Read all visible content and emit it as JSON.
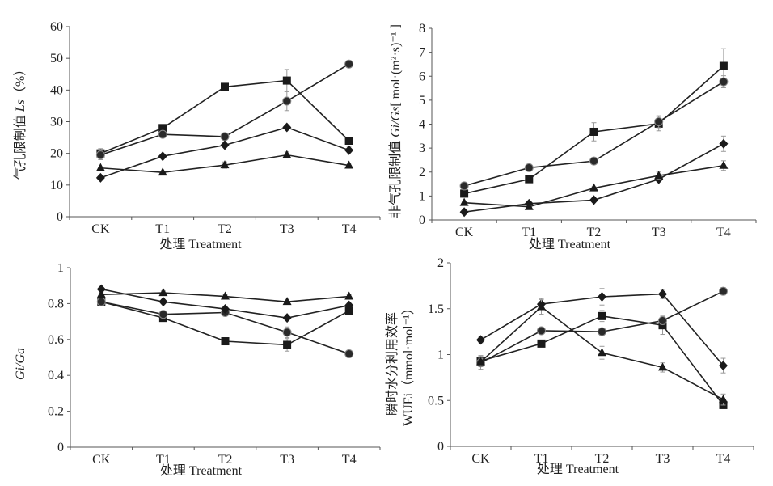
{
  "chart_data": [
    {
      "type": "line",
      "ylabel_parts": [
        {
          "text": "气孔限制值 ",
          "italic": false
        },
        {
          "text": "Ls",
          "italic": true
        },
        {
          "text": "（%）",
          "italic": false
        }
      ],
      "xlabel": "处理 Treatment",
      "categories": [
        "CK",
        "T1",
        "T2",
        "T3",
        "T4"
      ],
      "ylim": [
        0,
        60
      ],
      "yticks": [
        0,
        10,
        20,
        30,
        40,
        50,
        60
      ],
      "ytick_labels": [
        "0",
        "10",
        "20",
        "30",
        "40",
        "50",
        "60"
      ],
      "grid": false,
      "series": [
        {
          "marker": "square",
          "values": [
            20,
            28,
            41,
            43,
            24
          ],
          "errors": [
            1.5,
            0.5,
            1,
            3.5,
            0.5
          ]
        },
        {
          "marker": "circle",
          "values": [
            19.5,
            26,
            25.3,
            36.5,
            48.2
          ],
          "errors": [
            1.5,
            0.5,
            0.5,
            3,
            0.5
          ]
        },
        {
          "marker": "diamond",
          "values": [
            12.3,
            19.1,
            22.6,
            28.2,
            21
          ],
          "errors": [
            0.5,
            0.5,
            0.5,
            0.5,
            1.2
          ]
        },
        {
          "marker": "triangle",
          "values": [
            15.4,
            14,
            16.3,
            19.5,
            16.2
          ],
          "errors": [
            0.3,
            0.3,
            1,
            1,
            0.7
          ]
        }
      ]
    },
    {
      "type": "line",
      "ylabel_parts": [
        {
          "text": "非气孔限制值 ",
          "italic": false
        },
        {
          "text": "Gi/Gs",
          "italic": true
        },
        {
          "text": "[ mol·(m²·s)⁻¹ ]",
          "italic": false
        }
      ],
      "xlabel": "处理 Treatment",
      "categories": [
        "CK",
        "T1",
        "T2",
        "T3",
        "T4"
      ],
      "ylim": [
        0,
        8
      ],
      "yticks": [
        0,
        1,
        2,
        3,
        4,
        5,
        6,
        7,
        8
      ],
      "ytick_labels": [
        "0",
        "1",
        "2",
        "3",
        "4",
        "5",
        "6",
        "7",
        "8"
      ],
      "grid": false,
      "series": [
        {
          "marker": "square",
          "values": [
            1.1,
            1.7,
            3.68,
            4.02,
            6.43
          ],
          "errors": [
            0.05,
            0.05,
            0.38,
            0.3,
            0.72
          ]
        },
        {
          "marker": "circle",
          "values": [
            1.42,
            2.18,
            2.46,
            4.1,
            5.77
          ],
          "errors": [
            0.05,
            0.05,
            0.05,
            0.25,
            0.25
          ]
        },
        {
          "marker": "diamond",
          "values": [
            0.33,
            0.68,
            0.83,
            1.7,
            3.18
          ],
          "errors": [
            0.03,
            0.05,
            0.05,
            0.1,
            0.32
          ]
        },
        {
          "marker": "triangle",
          "values": [
            0.72,
            0.55,
            1.33,
            1.85,
            2.27
          ],
          "errors": [
            0.03,
            0.05,
            0.05,
            0.15,
            0.2
          ]
        }
      ]
    },
    {
      "type": "line",
      "ylabel_parts": [
        {
          "text": "Gi/Ga",
          "italic": true
        }
      ],
      "xlabel": "处理 Treatment",
      "categories": [
        "CK",
        "T1",
        "T2",
        "T3",
        "T4"
      ],
      "ylim": [
        0,
        1
      ],
      "yticks": [
        0,
        0.2,
        0.4,
        0.6,
        0.8,
        1
      ],
      "ytick_labels": [
        "0",
        "0.2",
        "0.4",
        "0.6",
        "0.8",
        "1"
      ],
      "grid": false,
      "series": [
        {
          "marker": "square",
          "values": [
            0.81,
            0.72,
            0.59,
            0.57,
            0.76
          ],
          "errors": [
            0.01,
            0.01,
            0.01,
            0.035,
            0.01
          ]
        },
        {
          "marker": "circle",
          "values": [
            0.81,
            0.74,
            0.75,
            0.64,
            0.52
          ],
          "errors": [
            0.01,
            0.01,
            0.01,
            0.03,
            0.01
          ]
        },
        {
          "marker": "diamond",
          "values": [
            0.88,
            0.81,
            0.77,
            0.72,
            0.79
          ],
          "errors": [
            0.01,
            0.01,
            0.01,
            0.01,
            0.01
          ]
        },
        {
          "marker": "triangle",
          "values": [
            0.85,
            0.86,
            0.84,
            0.81,
            0.84
          ],
          "errors": [
            0.01,
            0.01,
            0.01,
            0.01,
            0.01
          ]
        }
      ]
    },
    {
      "type": "line",
      "ylabel_lines": [
        "瞬时水分利用效率",
        "WUEi（mmol·mol⁻¹）"
      ],
      "xlabel": "处理 Treatment",
      "categories": [
        "CK",
        "T1",
        "T2",
        "T3",
        "T4"
      ],
      "ylim": [
        0,
        2
      ],
      "yticks": [
        0,
        0.5,
        1,
        1.5,
        2
      ],
      "ytick_labels": [
        "0",
        "0.5",
        "1",
        "1.5",
        "2"
      ],
      "grid": false,
      "series": [
        {
          "marker": "square",
          "values": [
            0.93,
            1.12,
            1.42,
            1.32,
            0.45
          ],
          "errors": [
            0.06,
            0.03,
            0.06,
            0.1,
            0.03
          ]
        },
        {
          "marker": "circle",
          "values": [
            0.91,
            1.26,
            1.25,
            1.37,
            1.69
          ],
          "errors": [
            0.07,
            0.03,
            0.04,
            0.04,
            0.04
          ]
        },
        {
          "marker": "diamond",
          "values": [
            1.16,
            1.55,
            1.63,
            1.66,
            0.88
          ],
          "errors": [
            0.03,
            0.06,
            0.09,
            0.05,
            0.08
          ]
        },
        {
          "marker": "triangle",
          "values": [
            0.92,
            1.52,
            1.02,
            0.86,
            0.51
          ],
          "errors": [
            0.04,
            0.08,
            0.07,
            0.05,
            0.06
          ]
        }
      ]
    }
  ]
}
